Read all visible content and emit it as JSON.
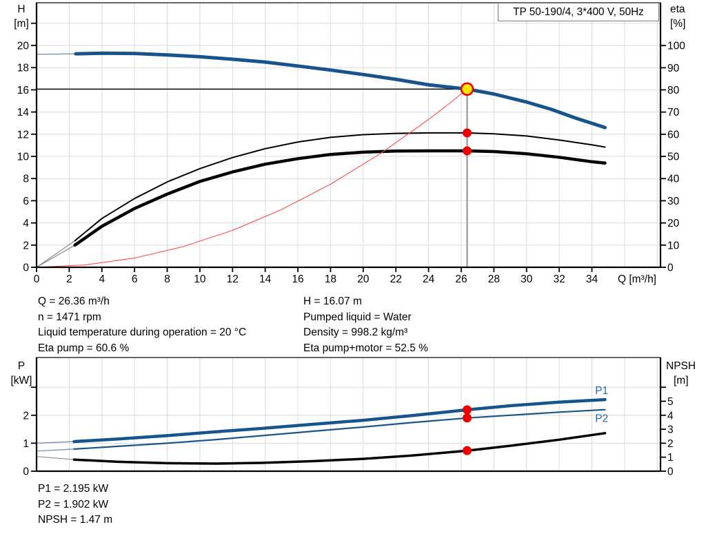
{
  "title_box": "TP 50-190/4, 3*400 V, 50Hz",
  "info": {
    "left": [
      "Q = 26.36 m³/h",
      "n = 1471 rpm",
      "Liquid temperature during operation = 20 °C",
      "Eta pump = 60.6 %"
    ],
    "right": [
      "H = 16.07 m",
      "Pumped liquid = Water",
      "Density = 998.2 kg/m³",
      "Eta pump+motor = 52.5 %"
    ],
    "results": [
      "P1 = 2.195 kW",
      "P2 = 1.902 kW",
      "NPSH = 1.47 m"
    ]
  },
  "colors": {
    "curve_blue": "#17548C",
    "thin_blue": "#7087A8",
    "black": "#000000",
    "thin_gray": "#8a8a8a",
    "red": "#EE0000",
    "system_red": "#FF4848",
    "yellow": "#FFE600",
    "grid": "#DCDCDC",
    "duty_gray": "#A0A0A0",
    "label_blue": "#2867A8",
    "frame": "#000000"
  },
  "chart_data": [
    {
      "type": "line",
      "name": "hq-eta-chart",
      "title": "TP 50-190/4, 3*400 V, 50Hz",
      "x": {
        "label": "Q [m³/h]",
        "min": 0,
        "max": 38.2,
        "ticks": [
          0,
          2,
          4,
          6,
          8,
          10,
          12,
          14,
          16,
          18,
          20,
          22,
          24,
          26,
          28,
          30,
          32,
          34
        ],
        "grid": [
          2,
          4,
          6,
          8,
          10,
          12,
          14,
          16,
          18,
          20,
          22,
          24,
          26,
          28,
          30,
          32,
          34,
          36,
          38
        ]
      },
      "y_left": {
        "label": [
          "H",
          "[m]"
        ],
        "min": 0,
        "max": 23.85,
        "ticks": [
          0,
          2,
          4,
          6,
          8,
          10,
          12,
          14,
          16,
          18,
          20
        ],
        "extra_ticks": [
          22
        ],
        "grid": [
          2,
          4,
          6,
          8,
          10,
          12,
          14,
          16,
          18,
          20,
          22
        ]
      },
      "y_right": {
        "label": [
          "eta",
          "[%]"
        ],
        "min": 0,
        "max": 119.3,
        "ticks": [
          0,
          10,
          20,
          30,
          40,
          50,
          60,
          70,
          80,
          90,
          100
        ],
        "extra_ticks": [],
        "grid": []
      },
      "duty_point": {
        "Q": 26.36,
        "H": 16.07,
        "eta_pump": 60.6,
        "eta_pump_motor": 52.5
      },
      "crosshair": {
        "q": 26.36,
        "v": 16.07
      },
      "series": [
        {
          "name": "head-curve",
          "axis": "left",
          "color": "#17548C",
          "thin_color": "#7087A8",
          "width": 5,
          "thin_until": 2.4,
          "points": [
            [
              0,
              19.2
            ],
            [
              1.2,
              19.22
            ],
            [
              2.4,
              19.25
            ],
            [
              4,
              19.3
            ],
            [
              6,
              19.28
            ],
            [
              8,
              19.15
            ],
            [
              10,
              18.98
            ],
            [
              12,
              18.76
            ],
            [
              14,
              18.5
            ],
            [
              16,
              18.15
            ],
            [
              18,
              17.78
            ],
            [
              20,
              17.38
            ],
            [
              22,
              16.95
            ],
            [
              24,
              16.45
            ],
            [
              26.36,
              16.07
            ],
            [
              28,
              15.62
            ],
            [
              30,
              14.9
            ],
            [
              31.5,
              14.25
            ],
            [
              33,
              13.45
            ],
            [
              34.8,
              12.6
            ]
          ]
        },
        {
          "name": "eta-pump-curve",
          "axis": "right",
          "color": "#000000",
          "thin_color": "#8a8a8a",
          "width": 2,
          "thin_until": 2.35,
          "points": [
            [
              0,
              0
            ],
            [
              2.35,
              12
            ],
            [
              4,
              22
            ],
            [
              6,
              31
            ],
            [
              8,
              38.5
            ],
            [
              10,
              44.5
            ],
            [
              12,
              49.5
            ],
            [
              14,
              53.5
            ],
            [
              16,
              56.5
            ],
            [
              18,
              58.6
            ],
            [
              20,
              59.8
            ],
            [
              22,
              60.4
            ],
            [
              24,
              60.6
            ],
            [
              26.36,
              60.6
            ],
            [
              28,
              60.2
            ],
            [
              30,
              59.2
            ],
            [
              32,
              57.4
            ],
            [
              34,
              55.2
            ],
            [
              34.8,
              54.2
            ]
          ]
        },
        {
          "name": "eta-pump-motor-curve",
          "axis": "right",
          "color": "#000000",
          "thin_color": "#8a8a8a",
          "width": 4.5,
          "thin_until": 2.35,
          "points": [
            [
              0,
              0
            ],
            [
              2.35,
              10
            ],
            [
              4,
              18.5
            ],
            [
              6,
              26.5
            ],
            [
              8,
              33
            ],
            [
              10,
              38.7
            ],
            [
              12,
              43
            ],
            [
              14,
              46.5
            ],
            [
              16,
              49
            ],
            [
              18,
              50.9
            ],
            [
              20,
              51.9
            ],
            [
              22,
              52.4
            ],
            [
              24,
              52.5
            ],
            [
              26.36,
              52.5
            ],
            [
              28,
              52.2
            ],
            [
              30,
              51.2
            ],
            [
              32,
              49.6
            ],
            [
              34,
              47.6
            ],
            [
              34.8,
              47
            ]
          ]
        },
        {
          "name": "system-curve",
          "axis": "left",
          "color": "#FF4848",
          "thin_color": "#FF4848",
          "width": 1.1,
          "points": [
            [
              0,
              0
            ],
            [
              3,
              0.21
            ],
            [
              6,
              0.83
            ],
            [
              9,
              1.87
            ],
            [
              12,
              3.33
            ],
            [
              15,
              5.2
            ],
            [
              18,
              7.49
            ],
            [
              21,
              10.2
            ],
            [
              24,
              13.32
            ],
            [
              25.5,
              15.03
            ],
            [
              26.36,
              16.07
            ]
          ]
        }
      ],
      "markers": [
        {
          "q": 26.36,
          "v": 16.07,
          "axis": "left",
          "style": "duty"
        },
        {
          "q": 26.36,
          "v": 60.6,
          "axis": "right",
          "style": "dot"
        },
        {
          "q": 26.36,
          "v": 52.5,
          "axis": "right",
          "style": "dot"
        }
      ]
    },
    {
      "type": "line",
      "name": "power-npsh-chart",
      "x": {
        "label": "",
        "min": 0,
        "max": 38.2,
        "ticks": [],
        "grid": [
          2,
          4,
          6,
          8,
          10,
          12,
          14,
          16,
          18,
          20,
          22,
          24,
          26,
          28,
          30,
          32,
          34,
          36,
          38
        ]
      },
      "y_left": {
        "label": [
          "P",
          "[kW]"
        ],
        "min": 0,
        "max": 4.064,
        "ticks": [
          0,
          1,
          2
        ],
        "extra_ticks": [
          3
        ],
        "grid": [
          1,
          2,
          3
        ]
      },
      "y_right": {
        "label": [
          "NPSH",
          "[m]"
        ],
        "min": 0,
        "max": 8.128,
        "ticks": [
          0,
          1,
          2,
          3,
          4,
          5
        ],
        "extra_ticks": [
          6
        ],
        "grid": []
      },
      "duty_point": {
        "Q": 26.36,
        "P1": 2.195,
        "P2": 1.902,
        "NPSH": 1.47
      },
      "series": [
        {
          "name": "p1-curve",
          "axis": "left",
          "color": "#17548C",
          "thin_color": "#7087A8",
          "width": 4.5,
          "thin_until": 2.3,
          "label": "P1",
          "label_q": 34.6,
          "label_dy": -13,
          "points": [
            [
              0,
              1.0
            ],
            [
              2.3,
              1.06
            ],
            [
              5,
              1.15
            ],
            [
              8,
              1.27
            ],
            [
              11,
              1.41
            ],
            [
              14,
              1.54
            ],
            [
              17,
              1.68
            ],
            [
              20,
              1.82
            ],
            [
              23,
              1.99
            ],
            [
              26.36,
              2.195
            ],
            [
              29,
              2.34
            ],
            [
              32,
              2.47
            ],
            [
              34.8,
              2.56
            ]
          ]
        },
        {
          "name": "p2-curve",
          "axis": "left",
          "color": "#17548C",
          "thin_color": "#7087A8",
          "width": 2.2,
          "thin_until": 2.3,
          "label": "P2",
          "label_q": 34.6,
          "label_dy": 13,
          "points": [
            [
              0,
              0.72
            ],
            [
              2.3,
              0.79
            ],
            [
              5,
              0.89
            ],
            [
              8,
              1.0
            ],
            [
              11,
              1.13
            ],
            [
              14,
              1.28
            ],
            [
              17,
              1.43
            ],
            [
              20,
              1.58
            ],
            [
              23,
              1.74
            ],
            [
              26.36,
              1.902
            ],
            [
              29,
              2.0
            ],
            [
              32,
              2.11
            ],
            [
              34.8,
              2.2
            ]
          ]
        },
        {
          "name": "npsh-curve",
          "axis": "right",
          "color": "#000000",
          "thin_color": "#8a8a8a",
          "width": 3.5,
          "thin_until": 2.3,
          "points": [
            [
              0,
              1.05
            ],
            [
              2.3,
              0.83
            ],
            [
              5,
              0.67
            ],
            [
              8,
              0.57
            ],
            [
              11,
              0.54
            ],
            [
              14,
              0.6
            ],
            [
              17,
              0.72
            ],
            [
              20,
              0.88
            ],
            [
              23,
              1.12
            ],
            [
              26.36,
              1.47
            ],
            [
              29,
              1.82
            ],
            [
              32,
              2.25
            ],
            [
              34.8,
              2.72
            ]
          ]
        }
      ],
      "markers": [
        {
          "q": 26.36,
          "v": 2.195,
          "axis": "left",
          "style": "dot"
        },
        {
          "q": 26.36,
          "v": 1.902,
          "axis": "left",
          "style": "dot"
        },
        {
          "q": 26.36,
          "v": 1.47,
          "axis": "right",
          "style": "dot"
        }
      ]
    }
  ]
}
